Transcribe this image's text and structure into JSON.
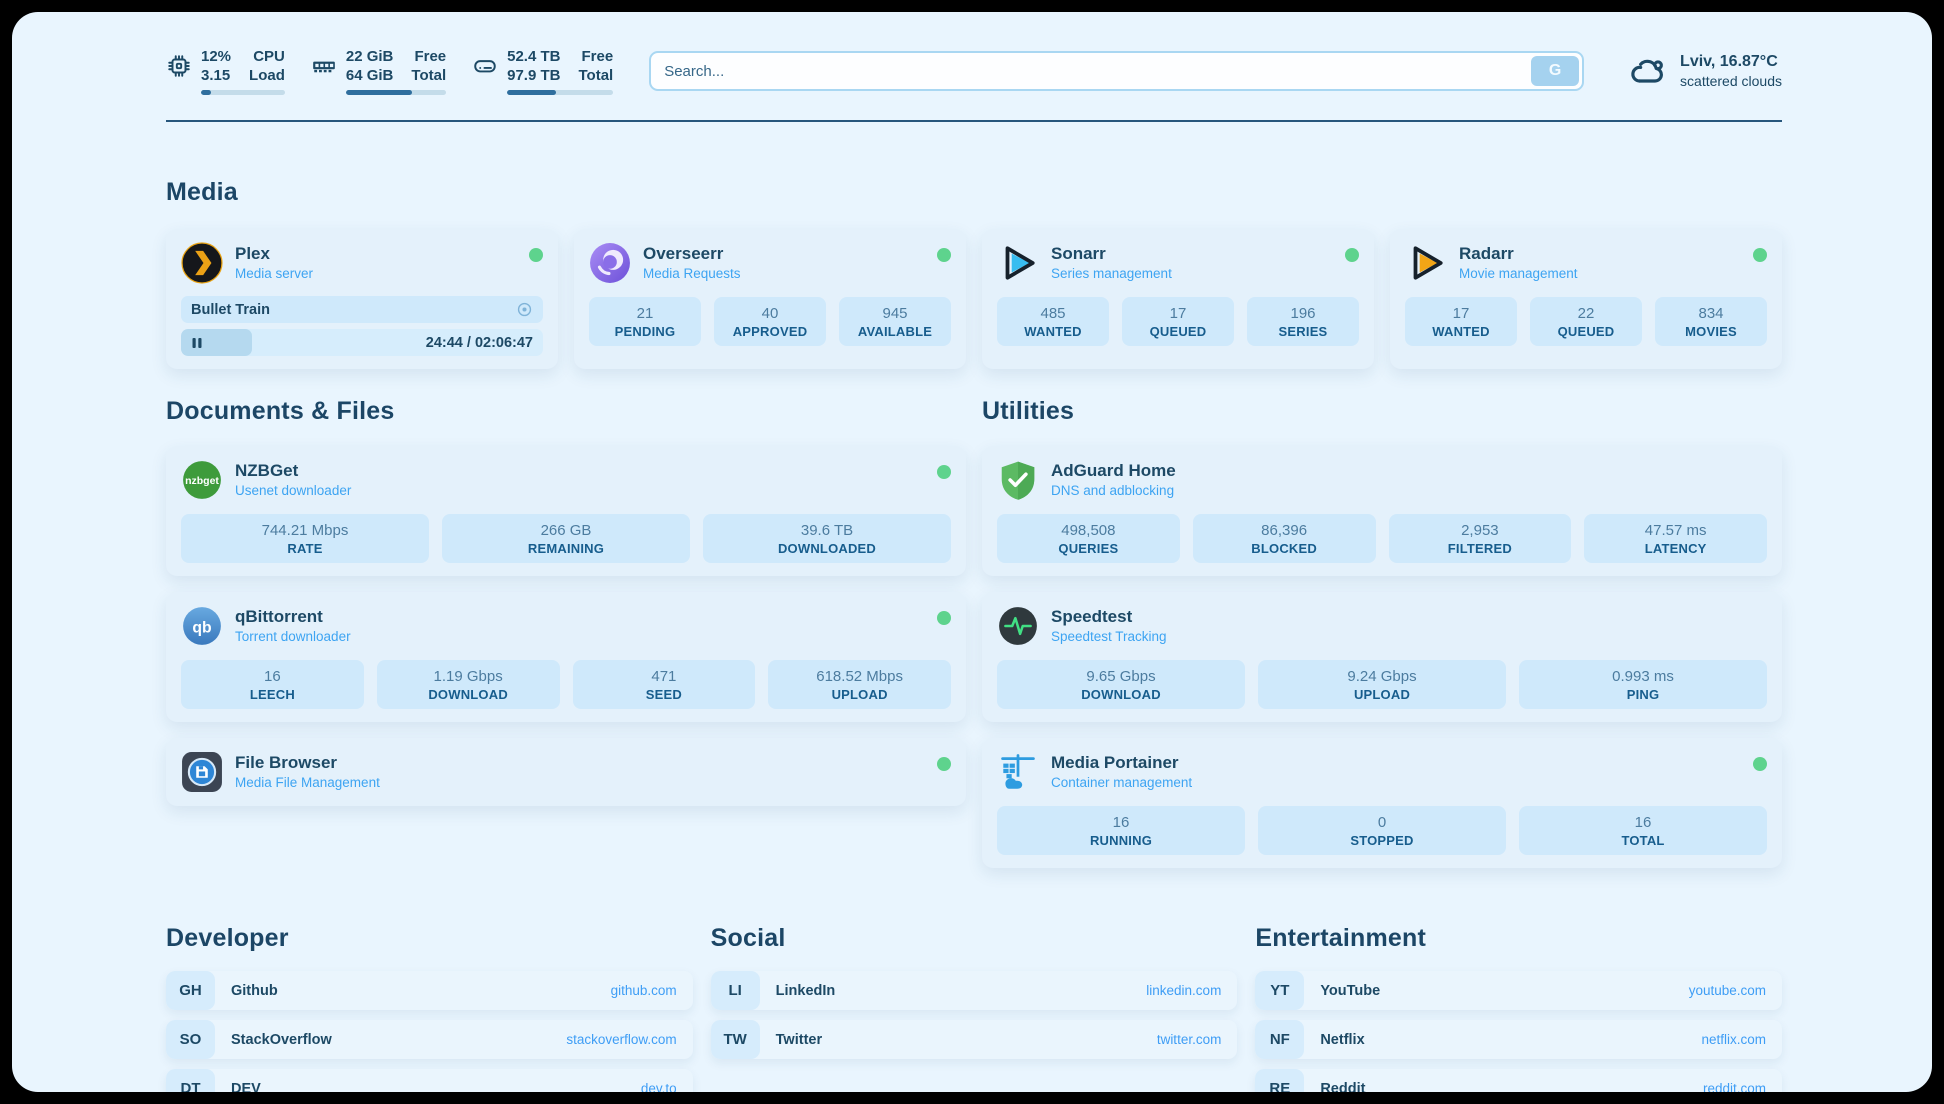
{
  "colors": {
    "accent_navy": "#1d4965",
    "link_blue": "#3da4f2",
    "status_green": "#5ed38d",
    "stat_box_blue": "#cfe9fb"
  },
  "header": {
    "system_stats": [
      {
        "icon": "cpu-icon",
        "value_top": "12%",
        "value_bottom": "3.15",
        "label_top": "CPU",
        "label_bottom": "Load",
        "progress": 12
      },
      {
        "icon": "ram-icon",
        "value_top": "22 GiB",
        "value_bottom": "64 GiB",
        "label_top": "Free",
        "label_bottom": "Total",
        "progress": 66
      },
      {
        "icon": "disk-icon",
        "value_top": "52.4 TB",
        "value_bottom": "97.9 TB",
        "label_top": "Free",
        "label_bottom": "Total",
        "progress": 46
      }
    ],
    "search": {
      "placeholder": "Search...",
      "button_label": "G"
    },
    "weather": {
      "icon": "cloud-icon",
      "location_temp": "Lviv, 16.87°C",
      "condition": "scattered clouds"
    }
  },
  "media": {
    "title": "Media",
    "plex": {
      "icon": "plex-icon",
      "name": "Plex",
      "subtitle": "Media server",
      "status": "online",
      "now_playing": {
        "title": "Bullet Train",
        "time": "24:44 / 02:06:47",
        "progress": 19.5
      }
    },
    "overseerr": {
      "icon": "overseerr-icon",
      "name": "Overseerr",
      "subtitle": "Media Requests",
      "status": "online",
      "stats": [
        {
          "value": "21",
          "label": "PENDING"
        },
        {
          "value": "40",
          "label": "APPROVED"
        },
        {
          "value": "945",
          "label": "AVAILABLE"
        }
      ]
    },
    "sonarr": {
      "icon": "sonarr-icon",
      "name": "Sonarr",
      "subtitle": "Series management",
      "status": "online",
      "stats": [
        {
          "value": "485",
          "label": "WANTED"
        },
        {
          "value": "17",
          "label": "QUEUED"
        },
        {
          "value": "196",
          "label": "SERIES"
        }
      ]
    },
    "radarr": {
      "icon": "radarr-icon",
      "name": "Radarr",
      "subtitle": "Movie management",
      "status": "online",
      "stats": [
        {
          "value": "17",
          "label": "WANTED"
        },
        {
          "value": "22",
          "label": "QUEUED"
        },
        {
          "value": "834",
          "label": "MOVIES"
        }
      ]
    }
  },
  "documents": {
    "title": "Documents & Files",
    "nzbget": {
      "icon": "nzbget-icon",
      "name": "NZBGet",
      "subtitle": "Usenet downloader",
      "status": "online",
      "stats": [
        {
          "value": "744.21 Mbps",
          "label": "RATE"
        },
        {
          "value": "266 GB",
          "label": "REMAINING"
        },
        {
          "value": "39.6 TB",
          "label": "DOWNLOADED"
        }
      ]
    },
    "qbittorrent": {
      "icon": "qbittorrent-icon",
      "name": "qBittorrent",
      "subtitle": "Torrent downloader",
      "status": "online",
      "stats": [
        {
          "value": "16",
          "label": "LEECH"
        },
        {
          "value": "1.19 Gbps",
          "label": "DOWNLOAD"
        },
        {
          "value": "471",
          "label": "SEED"
        },
        {
          "value": "618.52 Mbps",
          "label": "UPLOAD"
        }
      ]
    },
    "filebrowser": {
      "icon": "filebrowser-icon",
      "name": "File Browser",
      "subtitle": "Media File Management",
      "status": "online"
    }
  },
  "utilities": {
    "title": "Utilities",
    "adguard": {
      "icon": "adguard-icon",
      "name": "AdGuard Home",
      "subtitle": "DNS and adblocking",
      "stats": [
        {
          "value": "498,508",
          "label": "QUERIES"
        },
        {
          "value": "86,396",
          "label": "BLOCKED"
        },
        {
          "value": "2,953",
          "label": "FILTERED"
        },
        {
          "value": "47.57 ms",
          "label": "LATENCY"
        }
      ]
    },
    "speedtest": {
      "icon": "speedtest-icon",
      "name": "Speedtest",
      "subtitle": "Speedtest Tracking",
      "stats": [
        {
          "value": "9.65 Gbps",
          "label": "DOWNLOAD"
        },
        {
          "value": "9.24 Gbps",
          "label": "UPLOAD"
        },
        {
          "value": "0.993 ms",
          "label": "PING"
        }
      ]
    },
    "portainer": {
      "icon": "portainer-icon",
      "name": "Media Portainer",
      "subtitle": "Container management",
      "status": "online",
      "stats": [
        {
          "value": "16",
          "label": "RUNNING"
        },
        {
          "value": "0",
          "label": "STOPPED"
        },
        {
          "value": "16",
          "label": "TOTAL"
        }
      ]
    }
  },
  "links": {
    "developer": {
      "title": "Developer",
      "items": [
        {
          "abbr": "GH",
          "name": "Github",
          "url": "github.com"
        },
        {
          "abbr": "SO",
          "name": "StackOverflow",
          "url": "stackoverflow.com"
        },
        {
          "abbr": "DT",
          "name": "DEV",
          "url": "dev.to"
        }
      ]
    },
    "social": {
      "title": "Social",
      "items": [
        {
          "abbr": "LI",
          "name": "LinkedIn",
          "url": "linkedin.com"
        },
        {
          "abbr": "TW",
          "name": "Twitter",
          "url": "twitter.com"
        }
      ]
    },
    "entertainment": {
      "title": "Entertainment",
      "items": [
        {
          "abbr": "YT",
          "name": "YouTube",
          "url": "youtube.com"
        },
        {
          "abbr": "NF",
          "name": "Netflix",
          "url": "netflix.com"
        },
        {
          "abbr": "RE",
          "name": "Reddit",
          "url": "reddit.com"
        }
      ]
    }
  }
}
